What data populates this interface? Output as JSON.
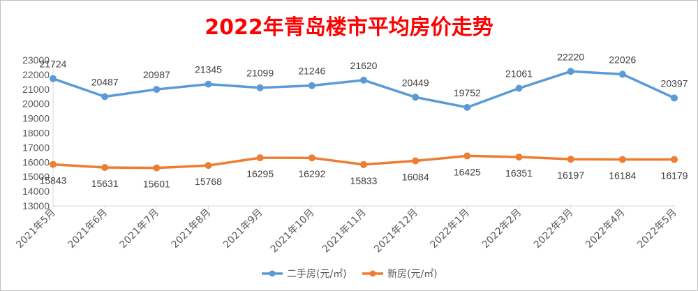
{
  "chart_data": {
    "type": "line",
    "title": "2022年青岛楼市平均房价走势",
    "title_color": "#ff0000",
    "categories": [
      "2021年5月",
      "2021年6月",
      "2021年7月",
      "2021年8月",
      "2021年9月",
      "2021年10月",
      "2021年11月",
      "2021年12月",
      "2022年1月",
      "2022年2月",
      "2022年3月",
      "2022年4月",
      "2022年5月"
    ],
    "series": [
      {
        "name": "二手房(元/㎡)",
        "color": "#5b9bd5",
        "values": [
          21724,
          20487,
          20987,
          21345,
          21099,
          21246,
          21620,
          20449,
          19752,
          21061,
          22220,
          22026,
          20397
        ]
      },
      {
        "name": "新房(元/㎡)",
        "color": "#ed7d31",
        "values": [
          15843,
          15631,
          15601,
          15768,
          16295,
          16292,
          15833,
          16084,
          16425,
          16351,
          16197,
          16184,
          16179
        ]
      }
    ],
    "yticks": [
      13000,
      14000,
      15000,
      16000,
      17000,
      18000,
      19000,
      20000,
      21000,
      22000,
      23000
    ],
    "ylim": [
      13000,
      23000
    ],
    "xlabel": "",
    "ylabel": "",
    "grid": false,
    "legend_position": "bottom",
    "data_labels": true
  }
}
